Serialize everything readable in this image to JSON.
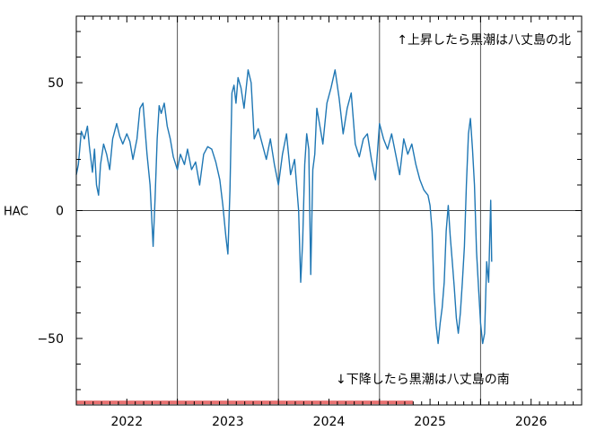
{
  "chart_data": {
    "type": "line",
    "title": "",
    "ylabel": "HAC",
    "xlabel": "",
    "xlim": [
      2021.5,
      2026.5
    ],
    "ylim": [
      -76,
      76
    ],
    "yticks": [
      -50,
      0,
      50
    ],
    "ytick_labels": [
      "−50",
      "0",
      "50"
    ],
    "xticks": [
      2022,
      2023,
      2024,
      2025,
      2026
    ],
    "xtick_labels": [
      "2022",
      "2023",
      "2024",
      "2025",
      "2026"
    ],
    "vertical_grid_years": [
      2021.5,
      2022.5,
      2023.5,
      2024.5,
      2025.5
    ],
    "zero_line": true,
    "annotation_top": "↑上昇したら黒潮は八丈島の北",
    "annotation_bottom": "↓下降したら黒潮は八丈島の南",
    "highlight_bar": {
      "x_range": [
        2021.5,
        2024.83
      ],
      "y": -75,
      "color": "#e45a5a"
    },
    "series": [
      {
        "color": "#1f77b4",
        "x": [
          2021.5,
          2021.52,
          2021.55,
          2021.58,
          2021.61,
          2021.63,
          2021.66,
          2021.68,
          2021.7,
          2021.72,
          2021.74,
          2021.77,
          2021.8,
          2021.83,
          2021.86,
          2021.9,
          2021.93,
          2021.96,
          2022.0,
          2022.03,
          2022.06,
          2022.1,
          2022.13,
          2022.16,
          2022.2,
          2022.23,
          2022.26,
          2022.28,
          2022.3,
          2022.32,
          2022.34,
          2022.37,
          2022.4,
          2022.43,
          2022.46,
          2022.5,
          2022.53,
          2022.57,
          2022.6,
          2022.64,
          2022.68,
          2022.72,
          2022.76,
          2022.8,
          2022.84,
          2022.88,
          2022.92,
          2022.95,
          2022.98,
          2023.0,
          2023.02,
          2023.04,
          2023.06,
          2023.08,
          2023.1,
          2023.13,
          2023.16,
          2023.2,
          2023.23,
          2023.26,
          2023.3,
          2023.34,
          2023.38,
          2023.42,
          2023.46,
          2023.5,
          2023.54,
          2023.58,
          2023.62,
          2023.66,
          2023.7,
          2023.72,
          2023.74,
          2023.76,
          2023.78,
          2023.8,
          2023.82,
          2023.84,
          2023.86,
          2023.88,
          2023.91,
          2023.94,
          2023.98,
          2024.02,
          2024.06,
          2024.1,
          2024.14,
          2024.18,
          2024.22,
          2024.26,
          2024.3,
          2024.34,
          2024.38,
          2024.42,
          2024.46,
          2024.5,
          2024.54,
          2024.58,
          2024.62,
          2024.66,
          2024.7,
          2024.74,
          2024.78,
          2024.82,
          2024.86,
          2024.9,
          2024.94,
          2024.98,
          2025.0,
          2025.02,
          2025.04,
          2025.06,
          2025.08,
          2025.1,
          2025.12,
          2025.14,
          2025.16,
          2025.18,
          2025.2,
          2025.22,
          2025.24,
          2025.26,
          2025.28,
          2025.3,
          2025.32,
          2025.34,
          2025.36,
          2025.38,
          2025.4,
          2025.42,
          2025.44,
          2025.46,
          2025.48,
          2025.5,
          2025.52,
          2025.54,
          2025.56,
          2025.58,
          2025.6,
          2025.61
        ],
        "y": [
          14,
          18,
          31,
          28,
          33,
          25,
          15,
          24,
          10,
          6,
          18,
          26,
          22,
          16,
          28,
          34,
          29,
          26,
          30,
          27,
          20,
          28,
          40,
          42,
          22,
          10,
          -14,
          5,
          28,
          41,
          38,
          42,
          33,
          28,
          21,
          16,
          22,
          18,
          24,
          16,
          19,
          10,
          22,
          25,
          24,
          19,
          12,
          2,
          -10,
          -17,
          8,
          46,
          49,
          42,
          52,
          48,
          40,
          55,
          50,
          28,
          32,
          26,
          20,
          28,
          18,
          10,
          22,
          30,
          14,
          20,
          0,
          -28,
          -12,
          18,
          30,
          24,
          -25,
          16,
          22,
          40,
          33,
          26,
          42,
          48,
          55,
          44,
          30,
          40,
          46,
          26,
          21,
          28,
          30,
          20,
          12,
          34,
          28,
          24,
          30,
          22,
          14,
          28,
          22,
          26,
          18,
          12,
          8,
          6,
          2,
          -8,
          -32,
          -45,
          -52,
          -44,
          -38,
          -28,
          -8,
          2,
          -10,
          -20,
          -30,
          -42,
          -48,
          -40,
          -28,
          -14,
          10,
          30,
          36,
          24,
          10,
          -16,
          -30,
          -44,
          -52,
          -48,
          -20,
          -28,
          4,
          -20
        ]
      }
    ]
  }
}
